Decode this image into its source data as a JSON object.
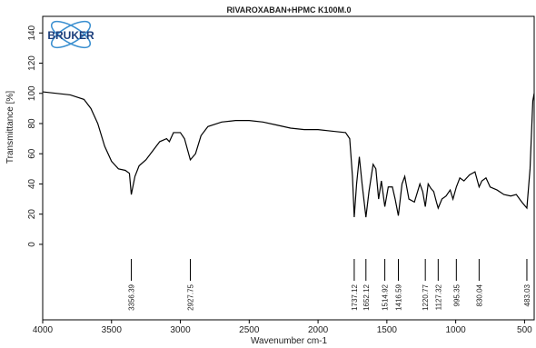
{
  "chart_data": {
    "type": "line",
    "title": "RIVAROXABAN+HPMC K100M.0",
    "xlabel": "Wavenumber cm-1",
    "ylabel": "Transmittance [%]",
    "logo": "BRUKER",
    "color": "#000000",
    "xlim": [
      4000,
      430
    ],
    "xticks": [
      4000,
      3500,
      3000,
      2500,
      2000,
      1500,
      1000,
      500
    ],
    "ylim": [
      -50,
      151
    ],
    "yticks": [
      0,
      20,
      40,
      60,
      80,
      100,
      120,
      140
    ],
    "grid": false,
    "x": [
      4000,
      3800,
      3700,
      3650,
      3600,
      3550,
      3500,
      3450,
      3400,
      3370,
      3356.39,
      3330,
      3300,
      3250,
      3200,
      3150,
      3100,
      3080,
      3050,
      3000,
      2970,
      2927.75,
      2890,
      2850,
      2800,
      2700,
      2600,
      2500,
      2400,
      2300,
      2200,
      2100,
      2000,
      1900,
      1800,
      1770,
      1750,
      1737.12,
      1720,
      1700,
      1680,
      1652.12,
      1630,
      1600,
      1580,
      1560,
      1540,
      1514.92,
      1490,
      1460,
      1440,
      1416.59,
      1390,
      1370,
      1340,
      1300,
      1260,
      1240,
      1220.77,
      1200,
      1180,
      1160,
      1140,
      1127.32,
      1100,
      1070,
      1040,
      1020,
      995.35,
      970,
      940,
      900,
      860,
      830.04,
      810,
      780,
      750,
      700,
      650,
      600,
      560,
      520,
      483.03,
      460,
      440,
      430
    ],
    "values": [
      101,
      99,
      96,
      90,
      80,
      65,
      55,
      50,
      49,
      47,
      33,
      45,
      52,
      56,
      62,
      68,
      70,
      68,
      74,
      74,
      70,
      56,
      60,
      72,
      78,
      81,
      82,
      82,
      81,
      79,
      77,
      76,
      76,
      75,
      74,
      70,
      45,
      18,
      40,
      58,
      40,
      18,
      35,
      53,
      50,
      30,
      42,
      25,
      38,
      38,
      30,
      19,
      40,
      45,
      30,
      28,
      40,
      35,
      25,
      40,
      37,
      35,
      28,
      24,
      30,
      32,
      36,
      30,
      38,
      44,
      42,
      46,
      48,
      38,
      42,
      44,
      38,
      36,
      33,
      32,
      33,
      28,
      24,
      50,
      95,
      100
    ],
    "peaks": [
      3356.39,
      2927.75,
      1737.12,
      1652.12,
      1514.92,
      1416.59,
      1220.77,
      1127.32,
      995.35,
      830.04,
      483.03
    ]
  }
}
